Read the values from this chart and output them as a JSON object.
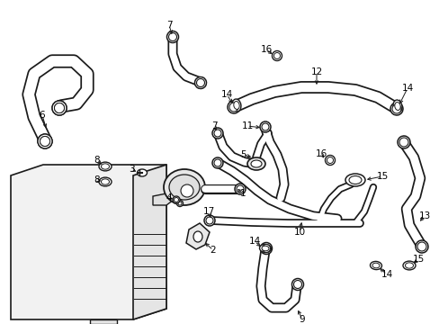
{
  "bg": "#ffffff",
  "lc": "#1a1a1a",
  "figsize": [
    4.89,
    3.6
  ],
  "dpi": 100,
  "fs": 7.5
}
